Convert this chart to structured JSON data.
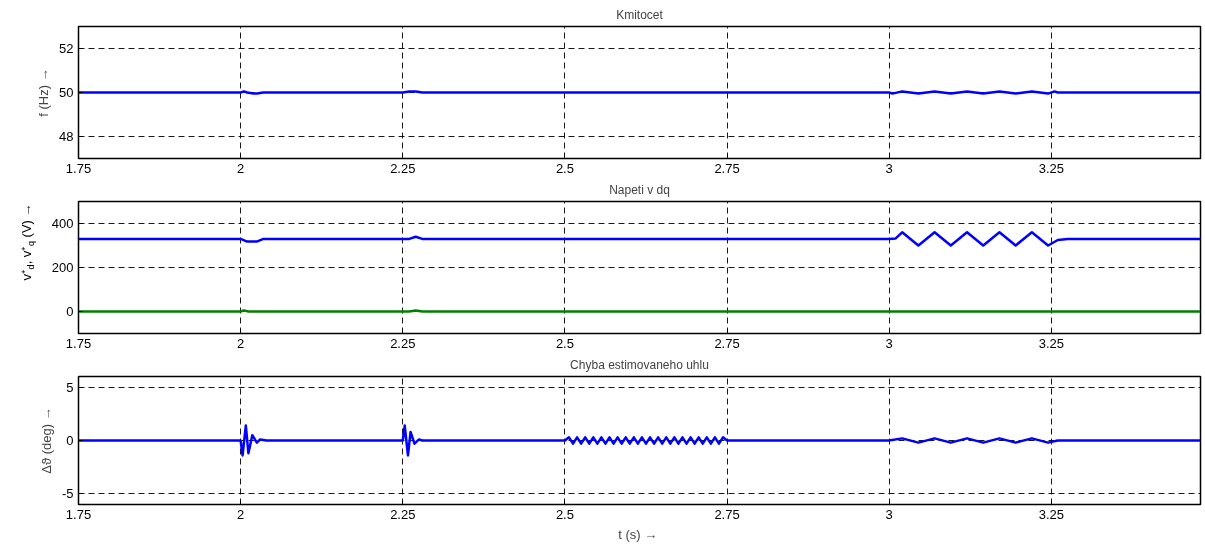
{
  "chart_data": [
    {
      "type": "line",
      "title": "Kmitocet",
      "ylabel": "f (Hz) →",
      "xlim": [
        1.75,
        3.48
      ],
      "xticks": [
        1.75,
        2,
        2.25,
        2.5,
        2.75,
        3,
        3.25
      ],
      "ylim": [
        47,
        53
      ],
      "yticks": [
        48,
        50,
        52
      ],
      "grid": true,
      "series": [
        {
          "color": "#0000ff",
          "x": [
            1.75,
            2.0,
            2.005,
            2.01,
            2.02,
            2.025,
            2.035,
            2.04,
            2.25,
            2.26,
            2.27,
            2.28,
            2.29,
            2.295,
            3.0,
            3.005,
            3.02,
            3.045,
            3.07,
            3.095,
            3.12,
            3.145,
            3.17,
            3.195,
            3.22,
            3.245,
            3.255,
            3.26,
            3.48
          ],
          "values": [
            50,
            50,
            50.05,
            50,
            49.95,
            49.95,
            50,
            50,
            50,
            50.05,
            50.05,
            50,
            50,
            50,
            50,
            49.95,
            50.05,
            49.95,
            50.05,
            49.95,
            50.05,
            49.95,
            50.05,
            49.95,
            50.05,
            49.95,
            50.05,
            50,
            50
          ]
        }
      ]
    },
    {
      "type": "line",
      "title": "Napeti v dq",
      "ylabel": "v⁺$_{d}$, v⁺$_{q}$ (V) →",
      "xlim": [
        1.75,
        3.48
      ],
      "xticks": [
        1.75,
        2,
        2.25,
        2.5,
        2.75,
        3,
        3.25
      ],
      "ylim": [
        -100,
        500
      ],
      "yticks": [
        0,
        200,
        400
      ],
      "grid": true,
      "series": [
        {
          "color": "#0000ff",
          "x": [
            1.75,
            2.0,
            2.01,
            2.025,
            2.035,
            2.26,
            2.27,
            2.28,
            3.0,
            3.01,
            3.02,
            3.045,
            3.07,
            3.095,
            3.12,
            3.145,
            3.17,
            3.195,
            3.22,
            3.245,
            3.26,
            3.275,
            3.48
          ],
          "values": [
            330,
            330,
            318,
            318,
            330,
            330,
            340,
            330,
            330,
            332,
            360,
            300,
            360,
            300,
            360,
            300,
            360,
            300,
            360,
            300,
            325,
            330,
            330
          ]
        },
        {
          "color": "#008000",
          "x": [
            1.75,
            2.0,
            2.005,
            2.012,
            2.26,
            2.27,
            2.28,
            3.48
          ],
          "values": [
            0,
            0,
            5,
            0,
            0,
            5,
            0,
            0
          ]
        }
      ]
    },
    {
      "type": "line",
      "title": "Chyba estimovaneho uhlu",
      "ylabel": "Δϑ (deg) →",
      "xlabel": "t (s)  →",
      "xlim": [
        1.75,
        3.48
      ],
      "xticks": [
        1.75,
        2,
        2.25,
        2.5,
        2.75,
        3,
        3.25
      ],
      "ylim": [
        -6,
        6
      ],
      "yticks": [
        -5,
        0,
        5
      ],
      "grid": true,
      "series": [
        {
          "color": "#0000ff",
          "x": [
            1.75,
            2.0,
            2.003,
            2.008,
            2.012,
            2.018,
            2.025,
            2.03,
            2.04,
            2.25,
            2.253,
            2.258,
            2.262,
            2.268,
            2.275,
            2.28,
            2.29,
            2.5,
            2.50625,
            2.5125,
            2.51875,
            2.525,
            2.53125,
            2.5375,
            2.54375,
            2.55,
            2.55625,
            2.5625,
            2.56875,
            2.575,
            2.58125,
            2.5875,
            2.59375,
            2.6,
            2.60625,
            2.6125,
            2.61875,
            2.625,
            2.63125,
            2.6375,
            2.64375,
            2.65,
            2.65625,
            2.6625,
            2.66875,
            2.675,
            2.68125,
            2.6875,
            2.69375,
            2.7,
            2.70625,
            2.7125,
            2.71875,
            2.725,
            2.73125,
            2.7375,
            2.74375,
            2.75,
            3.0,
            3.02,
            3.045,
            3.07,
            3.095,
            3.12,
            3.145,
            3.17,
            3.195,
            3.22,
            3.245,
            3.26,
            3.48
          ],
          "values": [
            0,
            0,
            -1.4,
            1.4,
            -1.2,
            0.5,
            -0.2,
            0.1,
            0,
            0,
            1.4,
            -1.4,
            0.8,
            -0.3,
            0.1,
            0,
            0,
            0,
            0.3,
            -0.3,
            0.3,
            -0.3,
            0.3,
            -0.3,
            0.3,
            -0.3,
            0.3,
            -0.3,
            0.3,
            -0.3,
            0.3,
            -0.3,
            0.3,
            -0.3,
            0.3,
            -0.3,
            0.3,
            -0.3,
            0.3,
            -0.3,
            0.3,
            -0.3,
            0.3,
            -0.3,
            0.3,
            -0.3,
            0.3,
            -0.3,
            0.3,
            -0.3,
            0.3,
            -0.3,
            0.3,
            -0.3,
            0.3,
            -0.3,
            0.3,
            0,
            0,
            0.2,
            -0.2,
            0.2,
            -0.2,
            0.2,
            -0.2,
            0.2,
            -0.2,
            0.2,
            -0.2,
            0,
            0
          ]
        }
      ]
    }
  ]
}
